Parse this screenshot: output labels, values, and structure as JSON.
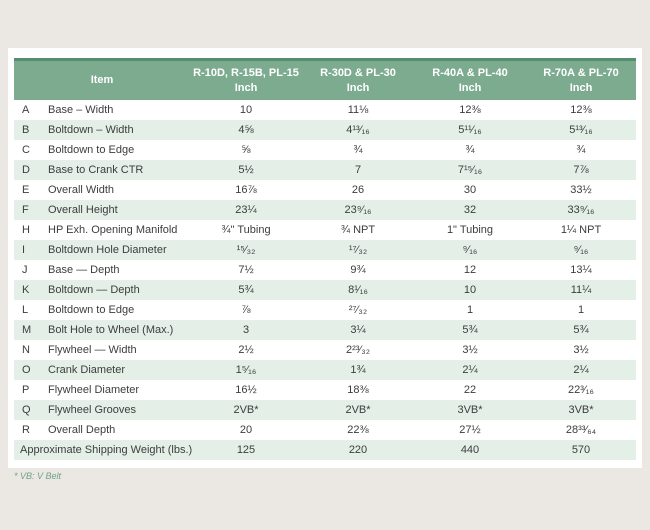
{
  "colors": {
    "bg": "#ebe7e2",
    "header-green": "#7dab90",
    "header-dark": "#55906e",
    "stripe": "#e3efe7",
    "text": "#3d3d3d",
    "footnote-green": "#6fa288"
  },
  "footnote": "* VB: V Belt",
  "table": {
    "header": {
      "item_label": "Item",
      "columns": [
        {
          "models": "R-10D, R-15B, PL-15",
          "unit": "Inch"
        },
        {
          "models": "R-30D & PL-30",
          "unit": "Inch"
        },
        {
          "models": "R-40A & PL-40",
          "unit": "Inch"
        },
        {
          "models": "R-70A & PL-70",
          "unit": "Inch"
        }
      ]
    },
    "rows": [
      {
        "letter": "A",
        "item": "Base – Width",
        "values": [
          "10",
          "11⅛",
          "12⅜",
          "12⅜"
        ]
      },
      {
        "letter": "B",
        "item": "Boltdown – Width",
        "values": [
          "4⅝",
          "4¹³⁄₁₆",
          "5¹¹⁄₁₆",
          "5¹³⁄₁₆"
        ]
      },
      {
        "letter": "C",
        "item": "Boltdown to Edge",
        "values": [
          "⅝",
          "¾",
          "¾",
          "¾"
        ]
      },
      {
        "letter": "D",
        "item": "Base to Crank CTR",
        "values": [
          "5½",
          "7",
          "7¹⁵⁄₁₆",
          "7⅞"
        ]
      },
      {
        "letter": "E",
        "item": "Overall Width",
        "values": [
          "16⅞",
          "26",
          "30",
          "33½"
        ]
      },
      {
        "letter": "F",
        "item": "Overall Height",
        "values": [
          "23¼",
          "23⁹⁄₁₆",
          "32",
          "33⁹⁄₁₆"
        ]
      },
      {
        "letter": "H",
        "item": "HP Exh. Opening Manifold",
        "values": [
          "¾\" Tubing",
          "¾ NPT",
          "1\" Tubing",
          "1¼ NPT"
        ]
      },
      {
        "letter": "I",
        "item": "Boltdown Hole Diameter",
        "values": [
          "¹⁵⁄₃₂",
          "¹⁷⁄₃₂",
          "⁹⁄₁₆",
          "⁹⁄₁₆"
        ]
      },
      {
        "letter": "J",
        "item": "Base — Depth",
        "values": [
          "7½",
          "9¾",
          "12",
          "13¼"
        ]
      },
      {
        "letter": "K",
        "item": "Boltdown — Depth",
        "values": [
          "5¾",
          "8¹⁄₁₆",
          "10",
          "11¼"
        ]
      },
      {
        "letter": "L",
        "item": "Boltdown to Edge",
        "values": [
          "⅞",
          "²⁷⁄₃₂",
          "1",
          "1"
        ]
      },
      {
        "letter": "M",
        "item": "Bolt Hole to Wheel (Max.)",
        "values": [
          "3",
          "3¼",
          "5¾",
          "5¾"
        ]
      },
      {
        "letter": "N",
        "item": "Flywheel — Width",
        "values": [
          "2½",
          "2²³⁄₃₂",
          "3½",
          "3½"
        ]
      },
      {
        "letter": "O",
        "item": "Crank Diameter",
        "values": [
          "1⁵⁄₁₆",
          "1¾",
          "2¼",
          "2¼"
        ]
      },
      {
        "letter": "P",
        "item": "Flywheel Diameter",
        "values": [
          "16½",
          "18⅜",
          "22",
          "22³⁄₁₆"
        ]
      },
      {
        "letter": "Q",
        "item": "Flywheel Grooves",
        "values": [
          "2VB*",
          "2VB*",
          "3VB*",
          "3VB*"
        ]
      },
      {
        "letter": "R",
        "item": "Overall Depth",
        "values": [
          "20",
          "22⅜",
          "27½",
          "28³³⁄₆₄"
        ]
      }
    ],
    "summary_row": {
      "item": "Approximate Shipping Weight (lbs.)",
      "values": [
        "125",
        "220",
        "440",
        "570"
      ]
    }
  }
}
